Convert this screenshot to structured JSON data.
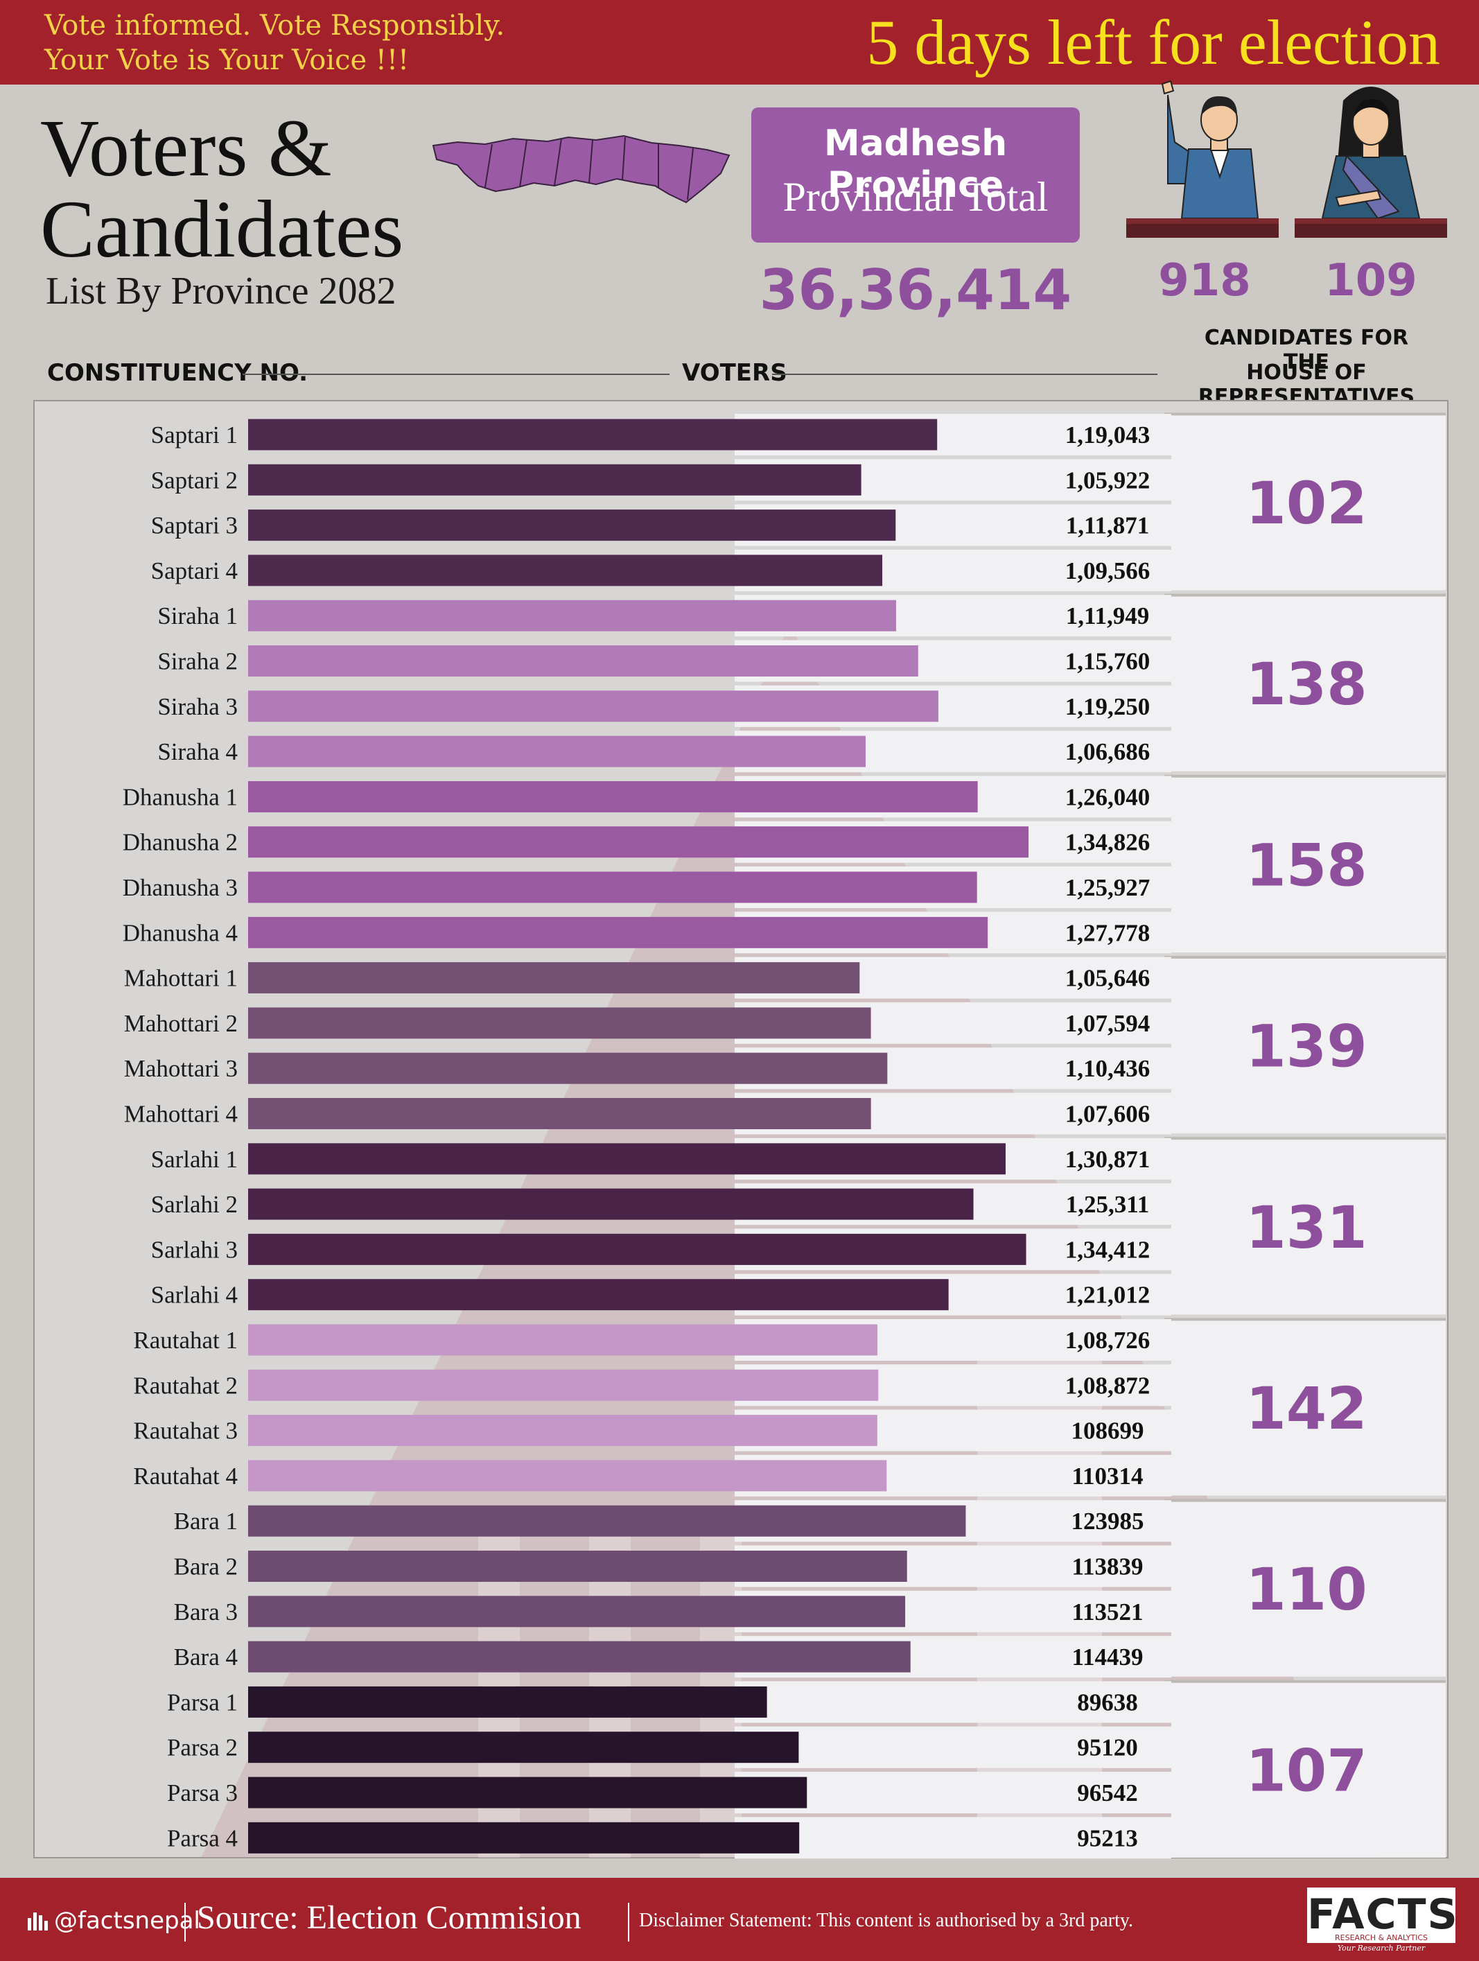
{
  "header": {
    "tagline_line1": "Vote informed. Vote Responsibly.",
    "tagline_line2": "Your Vote is Your Voice !!!",
    "countdown": "5 days left for election"
  },
  "title": {
    "line1": "Voters &",
    "line2": "Candidates",
    "subtitle": "List By Province 2082"
  },
  "province": {
    "name": "Madhesh Province",
    "label": "Provincial Total",
    "total_voters": "36,36,414",
    "male_candidates": "918",
    "female_candidates": "109"
  },
  "columns": {
    "constituency": "CONSTITUENCY NO.",
    "voters": "VOTERS",
    "candidates_line1": "CANDIDATES FOR THE",
    "candidates_line2": "HOUSE OF REPRESENTATIVES"
  },
  "colors": {
    "header_red": "#a3212b",
    "accent_purple": "#8e4f9c",
    "highlight_yellow": "#f7e11f"
  },
  "chart_data": {
    "type": "bar",
    "orientation": "horizontal",
    "title": "Voters & Candidates List By Province 2082",
    "xlabel": "VOTERS",
    "ylabel": "CONSTITUENCY NO.",
    "xlim": [
      0,
      134826
    ],
    "groups": [
      {
        "district": "Saptari",
        "candidates": "102",
        "color": "#4f2a4f",
        "rows": [
          {
            "name": "Saptari 1",
            "value": 119043,
            "label": "1,19,043"
          },
          {
            "name": "Saptari 2",
            "value": 105922,
            "label": "1,05,922"
          },
          {
            "name": "Saptari 3",
            "value": 111871,
            "label": "1,11,871"
          },
          {
            "name": "Saptari 4",
            "value": 109566,
            "label": "1,09,566"
          }
        ]
      },
      {
        "district": "Siraha",
        "candidates": "138",
        "color": "#b07bb6",
        "rows": [
          {
            "name": "Siraha 1",
            "value": 111949,
            "label": "1,11,949"
          },
          {
            "name": "Siraha 2",
            "value": 115760,
            "label": "1,15,760"
          },
          {
            "name": "Siraha 3",
            "value": 119250,
            "label": "1,19,250"
          },
          {
            "name": "Siraha 4",
            "value": 106686,
            "label": "1,06,686"
          }
        ]
      },
      {
        "district": "Dhanusha",
        "candidates": "158",
        "color": "#9b59a2",
        "rows": [
          {
            "name": "Dhanusha 1",
            "value": 126040,
            "label": "1,26,040"
          },
          {
            "name": "Dhanusha 2",
            "value": 134826,
            "label": "1,34,826"
          },
          {
            "name": "Dhanusha 3",
            "value": 125927,
            "label": "1,25,927"
          },
          {
            "name": "Dhanusha 4",
            "value": 127778,
            "label": "1,27,778"
          }
        ]
      },
      {
        "district": "Mahottari",
        "candidates": "139",
        "color": "#735074",
        "rows": [
          {
            "name": "Mahottari 1",
            "value": 105646,
            "label": "1,05,646"
          },
          {
            "name": "Mahottari 2",
            "value": 107594,
            "label": "1,07,594"
          },
          {
            "name": "Mahottari 3",
            "value": 110436,
            "label": "1,10,436"
          },
          {
            "name": "Mahottari 4",
            "value": 107606,
            "label": "1,07,606"
          }
        ]
      },
      {
        "district": "Sarlahi",
        "candidates": "131",
        "color": "#4a2349",
        "rows": [
          {
            "name": "Sarlahi 1",
            "value": 130871,
            "label": "1,30,871"
          },
          {
            "name": "Sarlahi 2",
            "value": 125311,
            "label": "1,25,311"
          },
          {
            "name": "Sarlahi 3",
            "value": 134412,
            "label": "1,34,412"
          },
          {
            "name": "Sarlahi 4",
            "value": 121012,
            "label": "1,21,012"
          }
        ]
      },
      {
        "district": "Rautahat",
        "candidates": "142",
        "color": "#c497c8",
        "rows": [
          {
            "name": "Rautahat 1",
            "value": 108726,
            "label": "1,08,726"
          },
          {
            "name": "Rautahat 2",
            "value": 108872,
            "label": "1,08,872"
          },
          {
            "name": "Rautahat 3",
            "value": 108699,
            "label": "108699"
          },
          {
            "name": "Rautahat 4",
            "value": 110314,
            "label": "110314"
          }
        ]
      },
      {
        "district": "Bara",
        "candidates": "110",
        "color": "#6e4b71",
        "rows": [
          {
            "name": "Bara 1",
            "value": 123985,
            "label": "123985"
          },
          {
            "name": "Bara 2",
            "value": 113839,
            "label": "113839"
          },
          {
            "name": "Bara 3",
            "value": 113521,
            "label": "113521"
          },
          {
            "name": "Bara 4",
            "value": 114439,
            "label": "114439"
          }
        ]
      },
      {
        "district": "Parsa",
        "candidates": "107",
        "color": "#26142a",
        "rows": [
          {
            "name": "Parsa 1",
            "value": 89638,
            "label": "89638"
          },
          {
            "name": "Parsa 2",
            "value": 95120,
            "label": "95120"
          },
          {
            "name": "Parsa 3",
            "value": 96542,
            "label": "96542"
          },
          {
            "name": "Parsa 4",
            "value": 95213,
            "label": "95213"
          }
        ]
      }
    ]
  },
  "footer": {
    "handle": "@factsnepal",
    "source": "Source: Election Commision",
    "disclaimer": "Disclaimer Statement: This content is authorised by a 3rd party.",
    "logo_text": "FACTS",
    "logo_sub": "RESEARCH & ANALYTICS",
    "logo_tagline": "Your Research Partner"
  }
}
